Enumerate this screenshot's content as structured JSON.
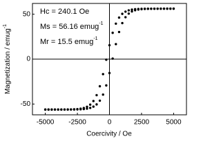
{
  "chart_data": {
    "type": "scatter",
    "xlabel": "Coercivity / Oe",
    "ylabel": {
      "text": "Magnetization / emug",
      "sup": "-1"
    },
    "annotations": [
      {
        "text": "Hc = 240.1 Oe"
      },
      {
        "text": "Ms = 56.16 emug",
        "sup": "-1"
      },
      {
        "text": "Mr = 15.5  emug",
        "sup": "-1"
      }
    ],
    "x": [
      -5000,
      -4750,
      -4500,
      -4250,
      -4000,
      -3750,
      -3500,
      -3250,
      -3000,
      -2750,
      -2500,
      -2250,
      -2000,
      -1750,
      -1500,
      -1250,
      -1000,
      -750,
      -500,
      -250,
      0,
      250,
      500,
      750,
      1000,
      1250,
      1500,
      1750,
      2000,
      2250,
      2500,
      2750,
      3000,
      3250,
      3500,
      3750,
      4000,
      4250,
      4500,
      4750,
      5000
    ],
    "series": [
      {
        "color": "#000000",
        "values": [
          -56.16,
          -56.16,
          -56.16,
          -56.15,
          -56.14,
          -56.13,
          -56.11,
          -56.07,
          -55.99,
          -55.86,
          -55.62,
          -55.18,
          -54.44,
          -53.07,
          -50.67,
          -46.68,
          -40.11,
          -30.2,
          -16.72,
          -0.66,
          15.48,
          29.27,
          39.47,
          46.26,
          50.43,
          52.9,
          54.33,
          55.14,
          55.59,
          55.85,
          55.99,
          56.06,
          56.11,
          56.13,
          56.15,
          56.15,
          56.16,
          56.16,
          56.16,
          56.16,
          56.16
        ]
      },
      {
        "color": "#000000",
        "values": [
          -56.16,
          -56.16,
          -56.16,
          -56.16,
          -56.16,
          -56.15,
          -56.15,
          -56.13,
          -56.11,
          -56.06,
          -55.99,
          -55.85,
          -55.59,
          -55.14,
          -54.33,
          -52.9,
          -50.43,
          -46.26,
          -39.47,
          -29.27,
          -15.48,
          0.66,
          16.72,
          30.2,
          40.11,
          46.68,
          50.67,
          53.07,
          54.44,
          55.18,
          55.62,
          55.86,
          55.99,
          56.07,
          56.11,
          56.13,
          56.14,
          56.15,
          56.16,
          56.16,
          56.16
        ]
      }
    ],
    "xlim": [
      -6000,
      6000
    ],
    "xticks": [
      -5000,
      -2500,
      0,
      2500,
      5000
    ],
    "ylim": [
      -62,
      62
    ],
    "yticks": [
      -50,
      0,
      50
    ]
  }
}
